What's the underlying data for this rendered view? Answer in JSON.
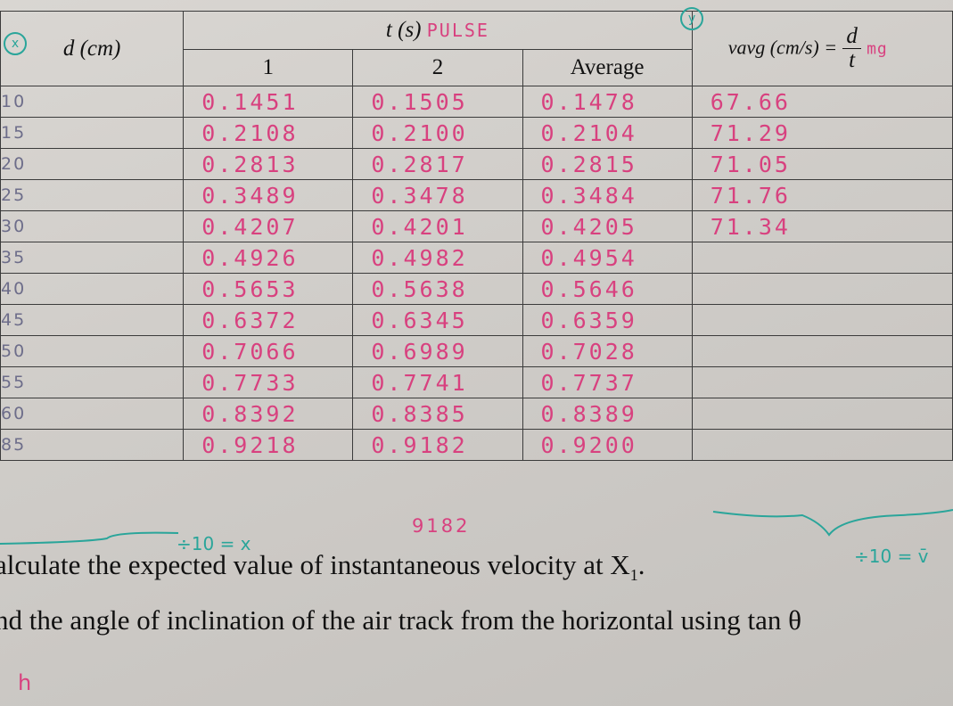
{
  "header": {
    "d_label": "d (cm)",
    "t_label": "t (s)",
    "t_note": "PULSE",
    "col1": "1",
    "col2": "2",
    "col_avg": "Average",
    "v_label": "vavg (cm/s) =",
    "v_num": "d",
    "v_den": "t",
    "v_note": "mg",
    "badge_x": "x",
    "badge_y": "y"
  },
  "rows": [
    {
      "d": "10",
      "t1": "0.1451",
      "t2": "0.1505",
      "avg": "0.1478",
      "v": "67.66"
    },
    {
      "d": "15",
      "t1": "0.2108",
      "t2": "0.2100",
      "avg": "0.2104",
      "v": "71.29"
    },
    {
      "d": "20",
      "t1": "0.2813",
      "t2": "0.2817",
      "avg": "0.2815",
      "v": "71.05"
    },
    {
      "d": "25",
      "t1": "0.3489",
      "t2": "0.3478",
      "avg": "0.3484",
      "v": "71.76"
    },
    {
      "d": "30",
      "t1": "0.4207",
      "t2": "0.4201",
      "avg": "0.4205",
      "v": "71.34"
    },
    {
      "d": "35",
      "t1": "0.4926",
      "t2": "0.4982",
      "avg": "0.4954",
      "v": ""
    },
    {
      "d": "40",
      "t1": "0.5653",
      "t2": "0.5638",
      "avg": "0.5646",
      "v": ""
    },
    {
      "d": "45",
      "t1": "0.6372",
      "t2": "0.6345",
      "avg": "0.6359",
      "v": ""
    },
    {
      "d": "50",
      "t1": "0.7066",
      "t2": "0.6989",
      "avg": "0.7028",
      "v": ""
    },
    {
      "d": "55",
      "t1": "0.7733",
      "t2": "0.7741",
      "avg": "0.7737",
      "v": ""
    },
    {
      "d": "60",
      "t1": "0.8392",
      "t2": "0.8385",
      "avg": "0.8389",
      "v": ""
    },
    {
      "d": "85",
      "t1": "0.9218",
      "t2": "0.9182",
      "avg": "0.9200",
      "v": ""
    }
  ],
  "notes": {
    "div_x": "÷10 = x",
    "div_v": "÷10 = v̄",
    "correction": "9182",
    "bottom_h": "h"
  },
  "text": {
    "line1": "alculate the expected value of instantaneous velocity at X",
    "line1_sub": "1",
    "line1_end": ".",
    "line2": "nd the angle of inclination of the air track from the horizontal using  tan θ"
  },
  "colors": {
    "pink": "#d8417f",
    "green": "#2aa59a",
    "ink": "#111111"
  }
}
